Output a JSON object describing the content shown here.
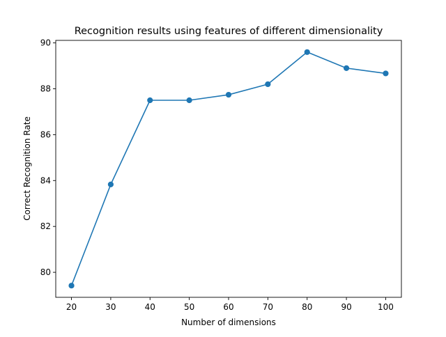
{
  "chart_data": {
    "type": "line",
    "title": "Recognition results using features of different dimensionality",
    "xlabel": "Number of dimensions",
    "ylabel": "Correct Recognition Rate",
    "x": [
      20,
      30,
      40,
      50,
      60,
      70,
      80,
      90,
      100
    ],
    "series": [
      {
        "values": [
          79.42,
          83.83,
          87.5,
          87.5,
          87.74,
          88.2,
          89.6,
          88.9,
          88.67
        ]
      }
    ],
    "xlim": [
      16,
      104
    ],
    "ylim": [
      78.91,
      90.11
    ],
    "xticks": [
      20,
      30,
      40,
      50,
      60,
      70,
      80,
      90,
      100
    ],
    "yticks": [
      80,
      82,
      84,
      86,
      88,
      90
    ],
    "grid": false,
    "legend": false,
    "line_color": "#1f77b4",
    "marker": "circle"
  }
}
